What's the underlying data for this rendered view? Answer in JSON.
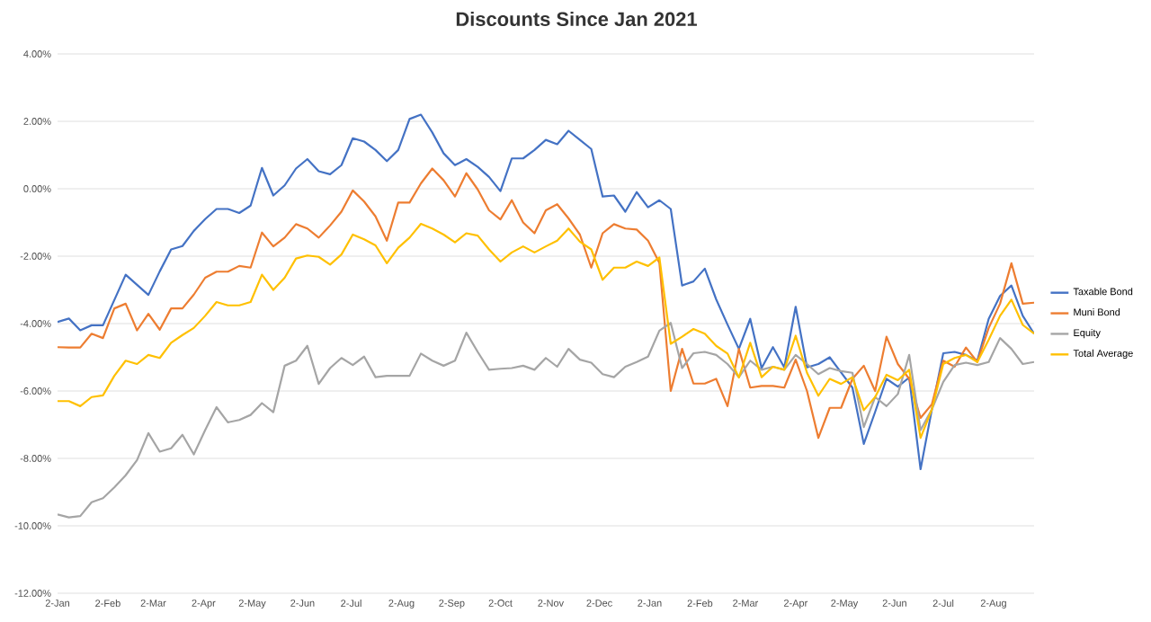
{
  "chart_data": {
    "type": "line",
    "title": "Discounts Since Jan 2021",
    "x": [
      "2021-01-02",
      "2021-01-09",
      "2021-01-16",
      "2021-01-23",
      "2021-01-30",
      "2021-02-06",
      "2021-02-13",
      "2021-02-20",
      "2021-02-27",
      "2021-03-06",
      "2021-03-13",
      "2021-03-20",
      "2021-03-27",
      "2021-04-03",
      "2021-04-10",
      "2021-04-17",
      "2021-04-24",
      "2021-05-01",
      "2021-05-08",
      "2021-05-15",
      "2021-05-22",
      "2021-05-29",
      "2021-06-05",
      "2021-06-12",
      "2021-06-19",
      "2021-06-26",
      "2021-07-03",
      "2021-07-10",
      "2021-07-17",
      "2021-07-24",
      "2021-07-31",
      "2021-08-07",
      "2021-08-14",
      "2021-08-21",
      "2021-08-28",
      "2021-09-04",
      "2021-09-11",
      "2021-09-18",
      "2021-09-25",
      "2021-10-02",
      "2021-10-09",
      "2021-10-16",
      "2021-10-23",
      "2021-10-30",
      "2021-11-06",
      "2021-11-13",
      "2021-11-20",
      "2021-11-27",
      "2021-12-04",
      "2021-12-11",
      "2021-12-18",
      "2021-12-25",
      "2022-01-01",
      "2022-01-08",
      "2022-01-15",
      "2022-01-22",
      "2022-01-29",
      "2022-02-05",
      "2022-02-12",
      "2022-02-19",
      "2022-02-26",
      "2022-03-05",
      "2022-03-12",
      "2022-03-19",
      "2022-03-26",
      "2022-04-02",
      "2022-04-09",
      "2022-04-16",
      "2022-04-23",
      "2022-04-30",
      "2022-05-07",
      "2022-05-14",
      "2022-05-21",
      "2022-05-28",
      "2022-06-04",
      "2022-06-11",
      "2022-06-18",
      "2022-06-25",
      "2022-07-02",
      "2022-07-09",
      "2022-07-16",
      "2022-07-23",
      "2022-07-30",
      "2022-08-06",
      "2022-08-13",
      "2022-08-20",
      "2022-08-27"
    ],
    "series": [
      {
        "name": "Taxable Bond",
        "color": "#4472c4",
        "values": [
          -3.95,
          -3.85,
          -4.2,
          -4.05,
          -4.05,
          -3.3,
          -2.55,
          -2.85,
          -3.15,
          -2.45,
          -1.8,
          -1.7,
          -1.25,
          -0.9,
          -0.6,
          -0.6,
          -0.72,
          -0.5,
          0.62,
          -0.2,
          0.1,
          0.6,
          0.88,
          0.52,
          0.43,
          0.7,
          1.5,
          1.4,
          1.15,
          0.82,
          1.15,
          2.07,
          2.2,
          1.67,
          1.05,
          0.7,
          0.88,
          0.65,
          0.35,
          -0.07,
          0.9,
          0.9,
          1.15,
          1.45,
          1.32,
          1.72,
          1.45,
          1.18,
          -0.23,
          -0.2,
          -0.68,
          -0.1,
          -0.55,
          -0.34,
          -0.6,
          -2.87,
          -2.75,
          -2.37,
          -3.28,
          -4.03,
          -4.75,
          -3.86,
          -5.32,
          -4.7,
          -5.3,
          -3.5,
          -5.3,
          -5.2,
          -5.0,
          -5.45,
          -5.9,
          -7.57,
          -6.62,
          -5.64,
          -5.87,
          -5.6,
          -8.32,
          -6.54,
          -4.88,
          -4.84,
          -4.93,
          -5.1,
          -3.86,
          -3.18,
          -2.87,
          -3.77,
          -4.3
        ]
      },
      {
        "name": "Muni Bond",
        "color": "#ed7d31",
        "values": [
          -4.7,
          -4.71,
          -4.71,
          -4.3,
          -4.43,
          -3.55,
          -3.41,
          -4.2,
          -3.71,
          -4.18,
          -3.55,
          -3.55,
          -3.14,
          -2.64,
          -2.46,
          -2.46,
          -2.29,
          -2.34,
          -1.3,
          -1.71,
          -1.45,
          -1.05,
          -1.18,
          -1.45,
          -1.09,
          -0.68,
          -0.05,
          -0.38,
          -0.82,
          -1.54,
          -0.41,
          -0.41,
          0.16,
          0.6,
          0.25,
          -0.23,
          0.46,
          -0.02,
          -0.64,
          -0.91,
          -0.34,
          -1.0,
          -1.32,
          -0.64,
          -0.46,
          -0.88,
          -1.36,
          -2.34,
          -1.32,
          -1.05,
          -1.18,
          -1.21,
          -1.54,
          -2.2,
          -6.0,
          -4.75,
          -5.78,
          -5.78,
          -5.64,
          -6.45,
          -4.75,
          -5.9,
          -5.85,
          -5.85,
          -5.9,
          -5.07,
          -6.0,
          -7.39,
          -6.5,
          -6.5,
          -5.64,
          -5.25,
          -6.0,
          -4.39,
          -5.2,
          -5.64,
          -6.8,
          -6.39,
          -5.1,
          -5.28,
          -4.71,
          -5.14,
          -4.13,
          -3.41,
          -2.21,
          -3.41,
          -3.38
        ]
      },
      {
        "name": "Equity",
        "color": "#a5a5a5",
        "values": [
          -9.66,
          -9.75,
          -9.71,
          -9.3,
          -9.18,
          -8.86,
          -8.5,
          -8.05,
          -7.25,
          -7.8,
          -7.7,
          -7.3,
          -7.88,
          -7.16,
          -6.48,
          -6.93,
          -6.86,
          -6.71,
          -6.36,
          -6.63,
          -5.25,
          -5.1,
          -4.66,
          -5.79,
          -5.32,
          -5.02,
          -5.23,
          -4.98,
          -5.59,
          -5.55,
          -5.55,
          -5.55,
          -4.89,
          -5.1,
          -5.25,
          -5.1,
          -4.27,
          -4.84,
          -5.37,
          -5.34,
          -5.32,
          -5.25,
          -5.37,
          -5.02,
          -5.28,
          -4.75,
          -5.07,
          -5.16,
          -5.5,
          -5.59,
          -5.28,
          -5.14,
          -4.98,
          -4.21,
          -3.98,
          -5.32,
          -4.88,
          -4.84,
          -4.93,
          -5.2,
          -5.59,
          -5.1,
          -5.37,
          -5.28,
          -5.37,
          -4.93,
          -5.2,
          -5.5,
          -5.32,
          -5.41,
          -5.46,
          -7.07,
          -6.18,
          -6.45,
          -6.09,
          -4.93,
          -7.16,
          -6.54,
          -5.73,
          -5.23,
          -5.16,
          -5.23,
          -5.14,
          -4.43,
          -4.75,
          -5.2,
          -5.14
        ]
      },
      {
        "name": "Total Average",
        "color": "#ffc000",
        "values": [
          -6.3,
          -6.3,
          -6.45,
          -6.18,
          -6.13,
          -5.55,
          -5.1,
          -5.2,
          -4.93,
          -5.02,
          -4.57,
          -4.34,
          -4.13,
          -3.77,
          -3.36,
          -3.46,
          -3.46,
          -3.36,
          -2.55,
          -3.0,
          -2.64,
          -2.07,
          -1.98,
          -2.02,
          -2.25,
          -1.95,
          -1.36,
          -1.5,
          -1.68,
          -2.21,
          -1.75,
          -1.45,
          -1.04,
          -1.18,
          -1.36,
          -1.59,
          -1.32,
          -1.39,
          -1.8,
          -2.16,
          -1.89,
          -1.71,
          -1.89,
          -1.71,
          -1.54,
          -1.18,
          -1.57,
          -1.8,
          -2.7,
          -2.34,
          -2.34,
          -2.16,
          -2.29,
          -2.04,
          -4.6,
          -4.39,
          -4.16,
          -4.3,
          -4.66,
          -4.89,
          -5.6,
          -4.57,
          -5.59,
          -5.28,
          -5.37,
          -4.36,
          -5.46,
          -6.14,
          -5.64,
          -5.79,
          -5.59,
          -6.57,
          -6.18,
          -5.52,
          -5.68,
          -5.37,
          -7.39,
          -6.54,
          -5.2,
          -5.02,
          -4.93,
          -5.14,
          -4.48,
          -3.77,
          -3.29,
          -4.04,
          -4.3
        ]
      }
    ],
    "xlim": [
      "2021-01-02",
      "2022-08-27"
    ],
    "xticks": [
      {
        "value": "2021-01-02",
        "label": "2-Jan"
      },
      {
        "value": "2021-02-02",
        "label": "2-Feb"
      },
      {
        "value": "2021-03-02",
        "label": "2-Mar"
      },
      {
        "value": "2021-04-02",
        "label": "2-Apr"
      },
      {
        "value": "2021-05-02",
        "label": "2-May"
      },
      {
        "value": "2021-06-02",
        "label": "2-Jun"
      },
      {
        "value": "2021-07-02",
        "label": "2-Jul"
      },
      {
        "value": "2021-08-02",
        "label": "2-Aug"
      },
      {
        "value": "2021-09-02",
        "label": "2-Sep"
      },
      {
        "value": "2021-10-02",
        "label": "2-Oct"
      },
      {
        "value": "2021-11-02",
        "label": "2-Nov"
      },
      {
        "value": "2021-12-02",
        "label": "2-Dec"
      },
      {
        "value": "2022-01-02",
        "label": "2-Jan"
      },
      {
        "value": "2022-02-02",
        "label": "2-Feb"
      },
      {
        "value": "2022-03-02",
        "label": "2-Mar"
      },
      {
        "value": "2022-04-02",
        "label": "2-Apr"
      },
      {
        "value": "2022-05-02",
        "label": "2-May"
      },
      {
        "value": "2022-06-02",
        "label": "2-Jun"
      },
      {
        "value": "2022-07-02",
        "label": "2-Jul"
      },
      {
        "value": "2022-08-02",
        "label": "2-Aug"
      }
    ],
    "ylim": [
      -12,
      4
    ],
    "yticks": [
      {
        "value": -12,
        "label": "-12.00%"
      },
      {
        "value": -10,
        "label": "-10.00%"
      },
      {
        "value": -8,
        "label": "-8.00%"
      },
      {
        "value": -6,
        "label": "-6.00%"
      },
      {
        "value": -4,
        "label": "-4.00%"
      },
      {
        "value": -2,
        "label": "-2.00%"
      },
      {
        "value": 0,
        "label": "0.00%"
      },
      {
        "value": 2,
        "label": "2.00%"
      },
      {
        "value": 4,
        "label": "4.00%"
      }
    ],
    "grid": "y",
    "legend": "right",
    "marker": "none",
    "line_style": "solid"
  }
}
